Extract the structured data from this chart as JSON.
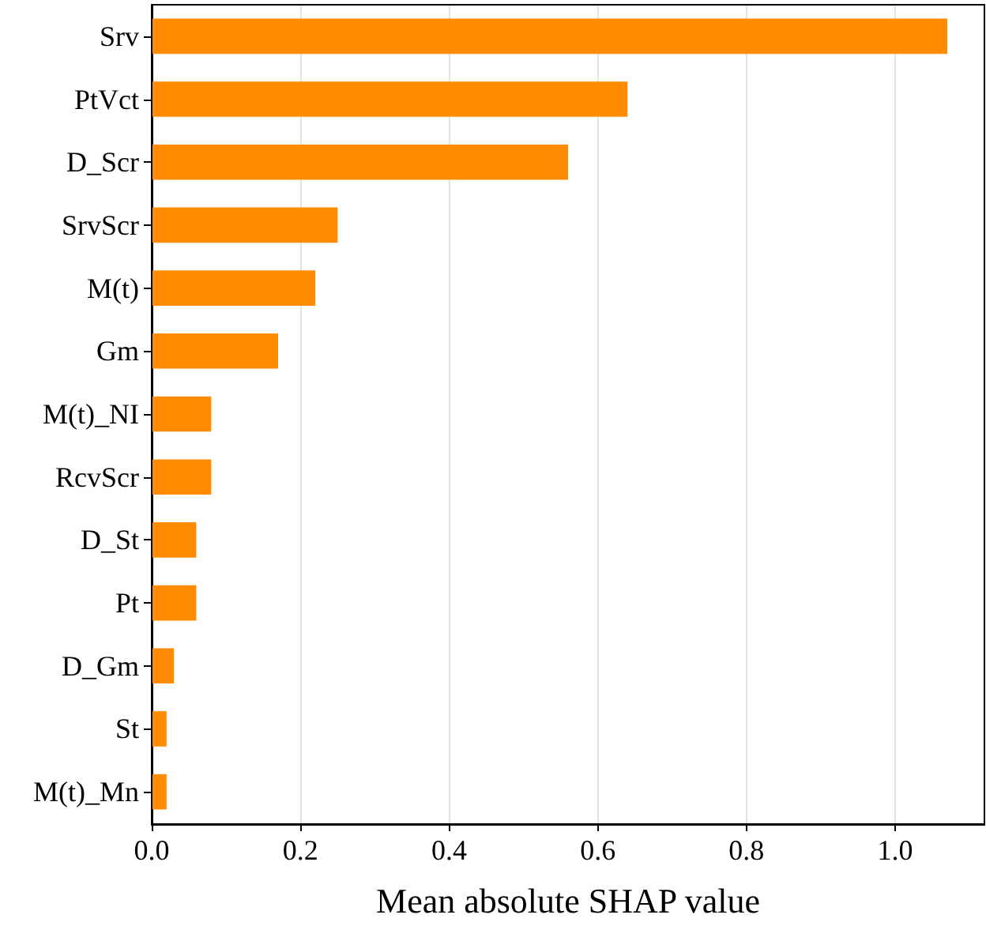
{
  "chart_data": {
    "type": "bar",
    "orientation": "horizontal",
    "xlabel": "Mean absolute SHAP value",
    "categories": [
      "Srv",
      "PtVct",
      "D_Scr",
      "SrvScr",
      "M(t)",
      "Gm",
      "M(t)_NI",
      "RcvScr",
      "D_St",
      "Pt",
      "D_Gm",
      "St",
      "M(t)_Mn"
    ],
    "values": [
      1.07,
      0.64,
      0.56,
      0.25,
      0.22,
      0.17,
      0.08,
      0.08,
      0.06,
      0.06,
      0.03,
      0.02,
      0.02
    ],
    "color": "#ff8c00",
    "xlim": [
      0,
      1.12
    ],
    "xticks": [
      {
        "value": 0,
        "label": "0.0"
      },
      {
        "value": 0.2,
        "label": "0.2"
      },
      {
        "value": 0.4,
        "label": "0.4"
      },
      {
        "value": 0.6,
        "label": "0.6"
      },
      {
        "value": 0.8,
        "label": "0.8"
      },
      {
        "value": 1.0,
        "label": "1.0"
      }
    ],
    "grid": "x"
  }
}
